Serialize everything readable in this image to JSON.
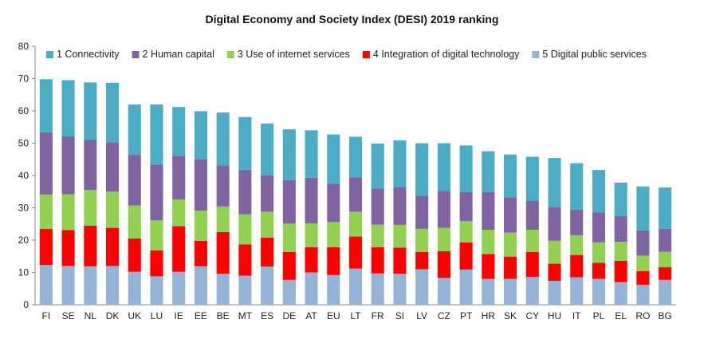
{
  "chart_data": {
    "type": "bar",
    "stacked": true,
    "title": "Digital Economy and Society Index (DESI) 2019 ranking",
    "xlabel": "",
    "ylabel": "",
    "ylim": [
      0,
      80
    ],
    "yticks": [
      0,
      10,
      20,
      30,
      40,
      50,
      60,
      70,
      80
    ],
    "grid": false,
    "legend": "top",
    "categories": [
      "FI",
      "SE",
      "NL",
      "DK",
      "UK",
      "LU",
      "IE",
      "EE",
      "BE",
      "MT",
      "ES",
      "DE",
      "AT",
      "EU",
      "LT",
      "FR",
      "SI",
      "LV",
      "CZ",
      "PT",
      "HR",
      "SK",
      "CY",
      "HU",
      "IT",
      "PL",
      "EL",
      "RO",
      "BG"
    ],
    "series": [
      {
        "name": "5 Digital public services",
        "color": "#95b3d7",
        "values": [
          12.3,
          12.0,
          11.9,
          12.0,
          10.2,
          8.8,
          10.2,
          11.9,
          9.6,
          9.0,
          11.8,
          7.7,
          10.0,
          9.2,
          11.2,
          9.7,
          9.6,
          11.0,
          8.3,
          10.9,
          8.0,
          8.0,
          8.6,
          7.4,
          8.5,
          8.0,
          7.0,
          6.2,
          7.7
        ]
      },
      {
        "name": "4 Integration of digital technology",
        "color": "#ff0000",
        "values": [
          11.2,
          11.1,
          12.6,
          11.8,
          10.3,
          8.0,
          14.1,
          7.9,
          12.9,
          9.7,
          9.0,
          8.6,
          7.8,
          8.6,
          9.9,
          8.1,
          8.1,
          5.3,
          8.3,
          8.4,
          7.7,
          6.9,
          7.7,
          5.3,
          6.9,
          5.0,
          6.6,
          4.2,
          3.9
        ]
      },
      {
        "name": "3 Use of internet services",
        "color": "#92d050",
        "values": [
          10.6,
          11.1,
          11.0,
          11.2,
          10.2,
          9.3,
          8.3,
          9.3,
          7.9,
          9.3,
          8.0,
          8.8,
          7.4,
          7.8,
          7.7,
          7.0,
          7.0,
          7.2,
          7.2,
          6.6,
          7.5,
          7.4,
          6.9,
          7.1,
          6.1,
          6.3,
          5.9,
          4.8,
          4.8
        ]
      },
      {
        "name": "2 Human capital",
        "color": "#8064a2",
        "values": [
          19.3,
          17.9,
          15.6,
          15.3,
          15.7,
          17.3,
          13.5,
          16.0,
          12.7,
          13.8,
          11.2,
          13.5,
          14.1,
          11.9,
          10.6,
          11.2,
          11.7,
          10.2,
          11.4,
          9.0,
          11.7,
          10.9,
          9.0,
          10.5,
          7.9,
          9.3,
          7.9,
          7.8,
          7.1
        ]
      },
      {
        "name": "1 Connectivity",
        "color": "#4bacc6",
        "values": [
          16.4,
          17.4,
          17.7,
          18.4,
          15.6,
          18.6,
          15.1,
          14.8,
          16.4,
          16.3,
          16.1,
          15.7,
          14.7,
          15.2,
          12.6,
          13.9,
          14.5,
          16.3,
          14.8,
          14.4,
          12.6,
          13.3,
          13.6,
          15.1,
          14.4,
          13.1,
          10.4,
          13.6,
          12.8
        ]
      }
    ],
    "legend_order": [
      "1 Connectivity",
      "2 Human capital",
      "3 Use of internet services",
      "4 Integration of digital technology",
      "5 Digital public services"
    ]
  }
}
